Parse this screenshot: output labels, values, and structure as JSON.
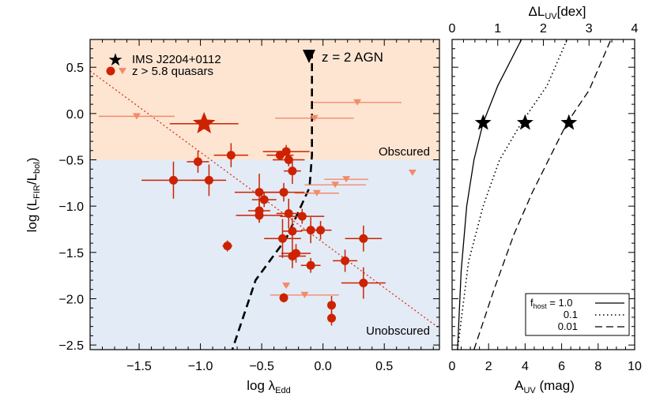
{
  "colors": {
    "obscured_bg": "#fde5d2",
    "unobscured_bg": "#e3ebf6",
    "quasar": "#cc2200",
    "upper_limit": "#f48a6a",
    "obscured_text": "#f4a66a",
    "unobscured_text": "#9cc7e0",
    "fit_line": "#dd3311"
  },
  "chart_data": [
    {
      "type": "scatter",
      "xlabel_main": "log λ",
      "xlabel_sub": "Edd",
      "ylabel_main": "log (L",
      "ylabel_sub1": "FIR",
      "ylabel_mid": "/L",
      "ylabel_sub2": "bol",
      "ylabel_end": ")",
      "xlim": [
        -1.9,
        0.95
      ],
      "ylim": [
        -2.55,
        0.8
      ],
      "xticks": [
        -1.5,
        -1.0,
        -0.5,
        0.0,
        0.5
      ],
      "xtick_labels": [
        "−1.5",
        "−1.0",
        "−0.5",
        "0.0",
        "0.5"
      ],
      "yticks": [
        0.5,
        0.0,
        -0.5,
        -1.0,
        -1.5,
        -2.0,
        -2.5
      ],
      "ytick_labels": [
        "0.5",
        "0.0",
        "−0.5",
        "−1.0",
        "−1.5",
        "−2.0",
        "−2.5"
      ],
      "region_boundary_y": -0.5,
      "region_labels": {
        "obscured": "Obscured",
        "unobscured": "Unobscured"
      },
      "legend": {
        "ims": "IMS J2204+0112",
        "quasars": "z > 5.8 quasars"
      },
      "agn_label": "z = 2 AGN",
      "ims_point": {
        "x": -0.97,
        "y": -0.11,
        "xerr": 0.28,
        "yerr": 0.06
      },
      "detections": [
        {
          "x": -1.02,
          "y": -0.52,
          "xerr": 0.09,
          "yerr": 0.12
        },
        {
          "x": -0.93,
          "y": -0.72,
          "xerr": 0.14,
          "yerr": 0.17
        },
        {
          "x": -1.22,
          "y": -0.72,
          "xerr": 0.26,
          "yerr": 0.2
        },
        {
          "x": -0.75,
          "y": -0.45,
          "xerr": 0.14,
          "yerr": 0.13
        },
        {
          "x": -0.3,
          "y": -0.41,
          "xerr": 0.19,
          "yerr": 0.07
        },
        {
          "x": -0.35,
          "y": -0.45,
          "xerr": 0.11,
          "yerr": 0.05
        },
        {
          "x": -0.28,
          "y": -0.5,
          "xerr": 0.13,
          "yerr": 0.07
        },
        {
          "x": -0.25,
          "y": -0.62,
          "xerr": 0.07,
          "yerr": 0.14
        },
        {
          "x": -0.32,
          "y": -0.85,
          "xerr": 0.17,
          "yerr": 0.1
        },
        {
          "x": -0.52,
          "y": -0.85,
          "xerr": 0.2,
          "yerr": 0.2
        },
        {
          "x": -0.48,
          "y": -0.93,
          "xerr": 0.1,
          "yerr": 0.08
        },
        {
          "x": -0.52,
          "y": -1.05,
          "xerr": 0.09,
          "yerr": 0.13
        },
        {
          "x": -0.52,
          "y": -1.1,
          "xerr": 0.19,
          "yerr": 0.07
        },
        {
          "x": -0.28,
          "y": -1.08,
          "xerr": 0.1,
          "yerr": 0.16
        },
        {
          "x": -0.17,
          "y": -1.11,
          "xerr": 0.18,
          "yerr": 0.08
        },
        {
          "x": -0.25,
          "y": -1.27,
          "xerr": 0.08,
          "yerr": 0.14
        },
        {
          "x": -0.1,
          "y": -1.26,
          "xerr": 0.08,
          "yerr": 0.14
        },
        {
          "x": -0.02,
          "y": -1.26,
          "xerr": 0.09,
          "yerr": 0.1
        },
        {
          "x": -0.33,
          "y": -1.35,
          "xerr": 0.15,
          "yerr": 0.21
        },
        {
          "x": -0.25,
          "y": -1.54,
          "xerr": 0.11,
          "yerr": 0.13
        },
        {
          "x": -0.22,
          "y": -1.51,
          "xerr": 0.12,
          "yerr": 0.1
        },
        {
          "x": -0.78,
          "y": -1.43,
          "xerr": 0.04,
          "yerr": 0.06
        },
        {
          "x": -0.1,
          "y": -1.64,
          "xerr": 0.08,
          "yerr": 0.08
        },
        {
          "x": 0.33,
          "y": -1.35,
          "xerr": 0.15,
          "yerr": 0.14
        },
        {
          "x": 0.18,
          "y": -1.59,
          "xerr": 0.1,
          "yerr": 0.12
        },
        {
          "x": 0.33,
          "y": -1.83,
          "xerr": 0.18,
          "yerr": 0.17
        },
        {
          "x": -0.32,
          "y": -1.99,
          "xerr": 0.03,
          "yerr": 0.05
        },
        {
          "x": 0.07,
          "y": -2.07,
          "xerr": 0.03,
          "yerr": 0.1
        },
        {
          "x": 0.07,
          "y": -2.21,
          "xerr": 0.03,
          "yerr": 0.08
        }
      ],
      "upper_limits": [
        {
          "x": -1.52,
          "y": -0.03,
          "xerr": 0.31
        },
        {
          "x": -0.07,
          "y": -0.05,
          "xerr": 0.32
        },
        {
          "x": 0.28,
          "y": 0.12,
          "xerr": 0.36
        },
        {
          "x": 0.19,
          "y": -0.71,
          "xerr": 0.18
        },
        {
          "x": 0.1,
          "y": -0.77,
          "xerr": 0.25
        },
        {
          "x": -0.05,
          "y": -0.86,
          "xerr": 0.18
        },
        {
          "x": 0.73,
          "y": -0.64,
          "xerr": 0.0
        },
        {
          "x": -0.3,
          "y": -1.86,
          "xerr": 0.02
        },
        {
          "x": -0.15,
          "y": -1.96,
          "xerr": 0.28
        }
      ],
      "fit_line": [
        [
          -1.9,
          0.46
        ],
        [
          0.95,
          -2.32
        ]
      ],
      "agn_curve": [
        [
          -0.09,
          0.68
        ],
        [
          -0.09,
          -0.45
        ],
        [
          -0.11,
          -0.8
        ],
        [
          -0.3,
          -1.35
        ],
        [
          -0.55,
          -1.8
        ],
        [
          -0.74,
          -2.55
        ]
      ]
    },
    {
      "type": "line",
      "xlabel_main": "A",
      "xlabel_sub": "UV",
      "xlabel_end": " (mag)",
      "top_xlabel_main": "ΔL",
      "top_xlabel_sub": "UV",
      "top_xlabel_end": "[dex]",
      "xlim": [
        0,
        10
      ],
      "xticks": [
        0,
        2,
        4,
        6,
        8,
        10
      ],
      "xtick_labels": [
        "0",
        "2",
        "4",
        "6",
        "8",
        "10"
      ],
      "top_xticks": [
        0,
        1,
        2,
        3,
        4
      ],
      "top_xtick_labels": [
        "0",
        "1",
        "2",
        "3",
        "4"
      ],
      "ylim": [
        -2.55,
        0.8
      ],
      "series": [
        {
          "name": "1.0",
          "dash": "solid",
          "points": [
            [
              0.3,
              -2.55
            ],
            [
              0.5,
              -1.7
            ],
            [
              0.8,
              -1.0
            ],
            [
              1.2,
              -0.5
            ],
            [
              1.7,
              -0.1
            ],
            [
              2.5,
              0.3
            ],
            [
              3.8,
              0.8
            ]
          ]
        },
        {
          "name": "0.1",
          "dash": "dotted",
          "points": [
            [
              0.3,
              -2.55
            ],
            [
              0.9,
              -1.6
            ],
            [
              1.7,
              -1.0
            ],
            [
              2.6,
              -0.5
            ],
            [
              3.8,
              -0.1
            ],
            [
              5.2,
              0.3
            ],
            [
              6.3,
              0.8
            ]
          ]
        },
        {
          "name": "0.01",
          "dash": "dashed",
          "points": [
            [
              1.2,
              -2.55
            ],
            [
              2.3,
              -1.9
            ],
            [
              3.4,
              -1.3
            ],
            [
              4.4,
              -0.85
            ],
            [
              6.3,
              -0.1
            ],
            [
              7.5,
              0.25
            ],
            [
              8.7,
              0.8
            ]
          ]
        }
      ],
      "stars": [
        [
          1.7,
          -0.1
        ],
        [
          4.0,
          -0.1
        ],
        [
          6.4,
          -0.1
        ]
      ],
      "legend_prefix": "f",
      "legend_prefix_sub": "host",
      "legend_eq": " = 1.0",
      "legend_labels": [
        "0.1",
        "0.01"
      ]
    }
  ]
}
